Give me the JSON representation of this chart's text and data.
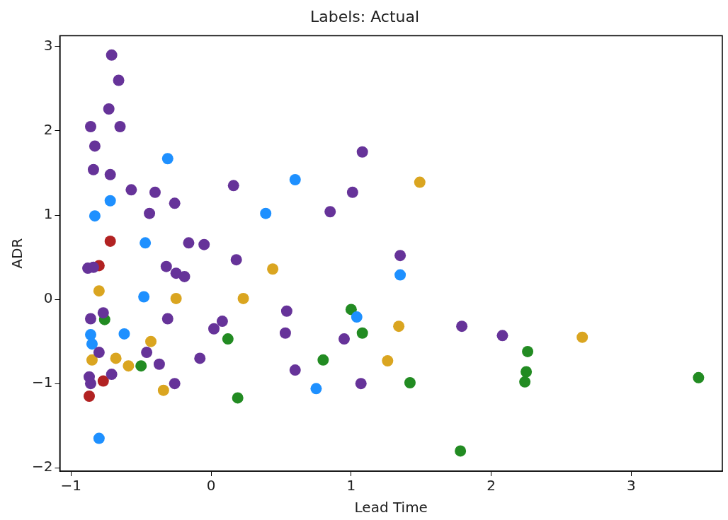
{
  "chart_data": {
    "type": "scatter",
    "title": "Labels: Actual",
    "xlabel": "Lead Time",
    "ylabel": "ADR",
    "marker": "circle",
    "grid": false,
    "legend": false,
    "xlim": [
      -1.08,
      3.65
    ],
    "ylim": [
      -2.04,
      3.13
    ],
    "xticks": [
      {
        "value": -1,
        "label": "−1"
      },
      0,
      1,
      2,
      3
    ],
    "yticks": [
      {
        "value": -2,
        "label": "−2"
      },
      {
        "value": -1,
        "label": "−1"
      },
      0,
      1,
      2,
      3
    ],
    "series": [
      {
        "color": "#663399",
        "x": [
          -0.71,
          -0.66,
          -0.73,
          -0.86,
          -0.65,
          -0.83,
          -0.84,
          -0.72,
          -0.57,
          -0.4,
          -0.26,
          -0.44,
          0.16,
          1.08,
          1.01,
          0.85,
          -0.16,
          -0.05,
          0.18,
          1.35,
          -0.32,
          -0.25,
          -0.19,
          -0.88,
          -0.84,
          -0.86,
          -0.77,
          -0.31,
          0.08,
          0.02,
          0.54,
          0.53,
          0.95,
          1.79,
          2.08,
          -0.08,
          0.6,
          1.07,
          -0.26,
          -0.37,
          -0.46,
          -0.87,
          -0.86,
          -0.71,
          -0.8
        ],
        "values": [
          2.9,
          2.6,
          2.26,
          2.05,
          2.05,
          1.82,
          1.54,
          1.48,
          1.3,
          1.27,
          1.14,
          1.02,
          1.35,
          1.75,
          1.27,
          1.04,
          0.67,
          0.65,
          0.47,
          0.52,
          0.39,
          0.31,
          0.27,
          0.37,
          0.38,
          -0.23,
          -0.16,
          -0.23,
          -0.26,
          -0.35,
          -0.14,
          -0.4,
          -0.47,
          -0.32,
          -0.43,
          -0.7,
          -0.84,
          -1.0,
          -1.0,
          -0.77,
          -0.63,
          -0.92,
          -1.0,
          -0.89,
          -0.63
        ]
      },
      {
        "color": "#1e90ff",
        "x": [
          -0.31,
          0.6,
          -0.72,
          -0.83,
          0.39,
          -0.47,
          1.35,
          -0.48,
          -0.62,
          -0.86,
          -0.85,
          1.04,
          0.75,
          -0.8
        ],
        "values": [
          1.67,
          1.42,
          1.17,
          0.99,
          1.02,
          0.67,
          0.29,
          0.03,
          -0.41,
          -0.42,
          -0.53,
          -0.21,
          -1.06,
          -1.65
        ]
      },
      {
        "color": "#b22222",
        "x": [
          -0.72,
          -0.8,
          -0.77,
          -0.87
        ],
        "values": [
          0.69,
          0.4,
          -0.97,
          -1.15
        ]
      },
      {
        "color": "#daa520",
        "x": [
          1.49,
          0.44,
          -0.8,
          -0.25,
          0.23,
          -0.43,
          1.34,
          -0.68,
          -0.59,
          -0.85,
          1.26,
          -0.34,
          2.65
        ],
        "values": [
          1.39,
          0.36,
          0.1,
          0.01,
          0.01,
          -0.5,
          -0.32,
          -0.7,
          -0.79,
          -0.72,
          -0.73,
          -1.08,
          -0.45
        ]
      },
      {
        "color": "#228b22",
        "x": [
          -0.76,
          0.12,
          -0.5,
          0.19,
          0.8,
          1.0,
          1.08,
          1.42,
          1.78,
          2.26,
          2.25,
          2.24,
          3.48
        ],
        "values": [
          -0.24,
          -0.47,
          -0.79,
          -1.17,
          -0.72,
          -0.12,
          -0.4,
          -0.99,
          -1.8,
          -0.62,
          -0.86,
          -0.98,
          -0.93
        ]
      }
    ]
  }
}
